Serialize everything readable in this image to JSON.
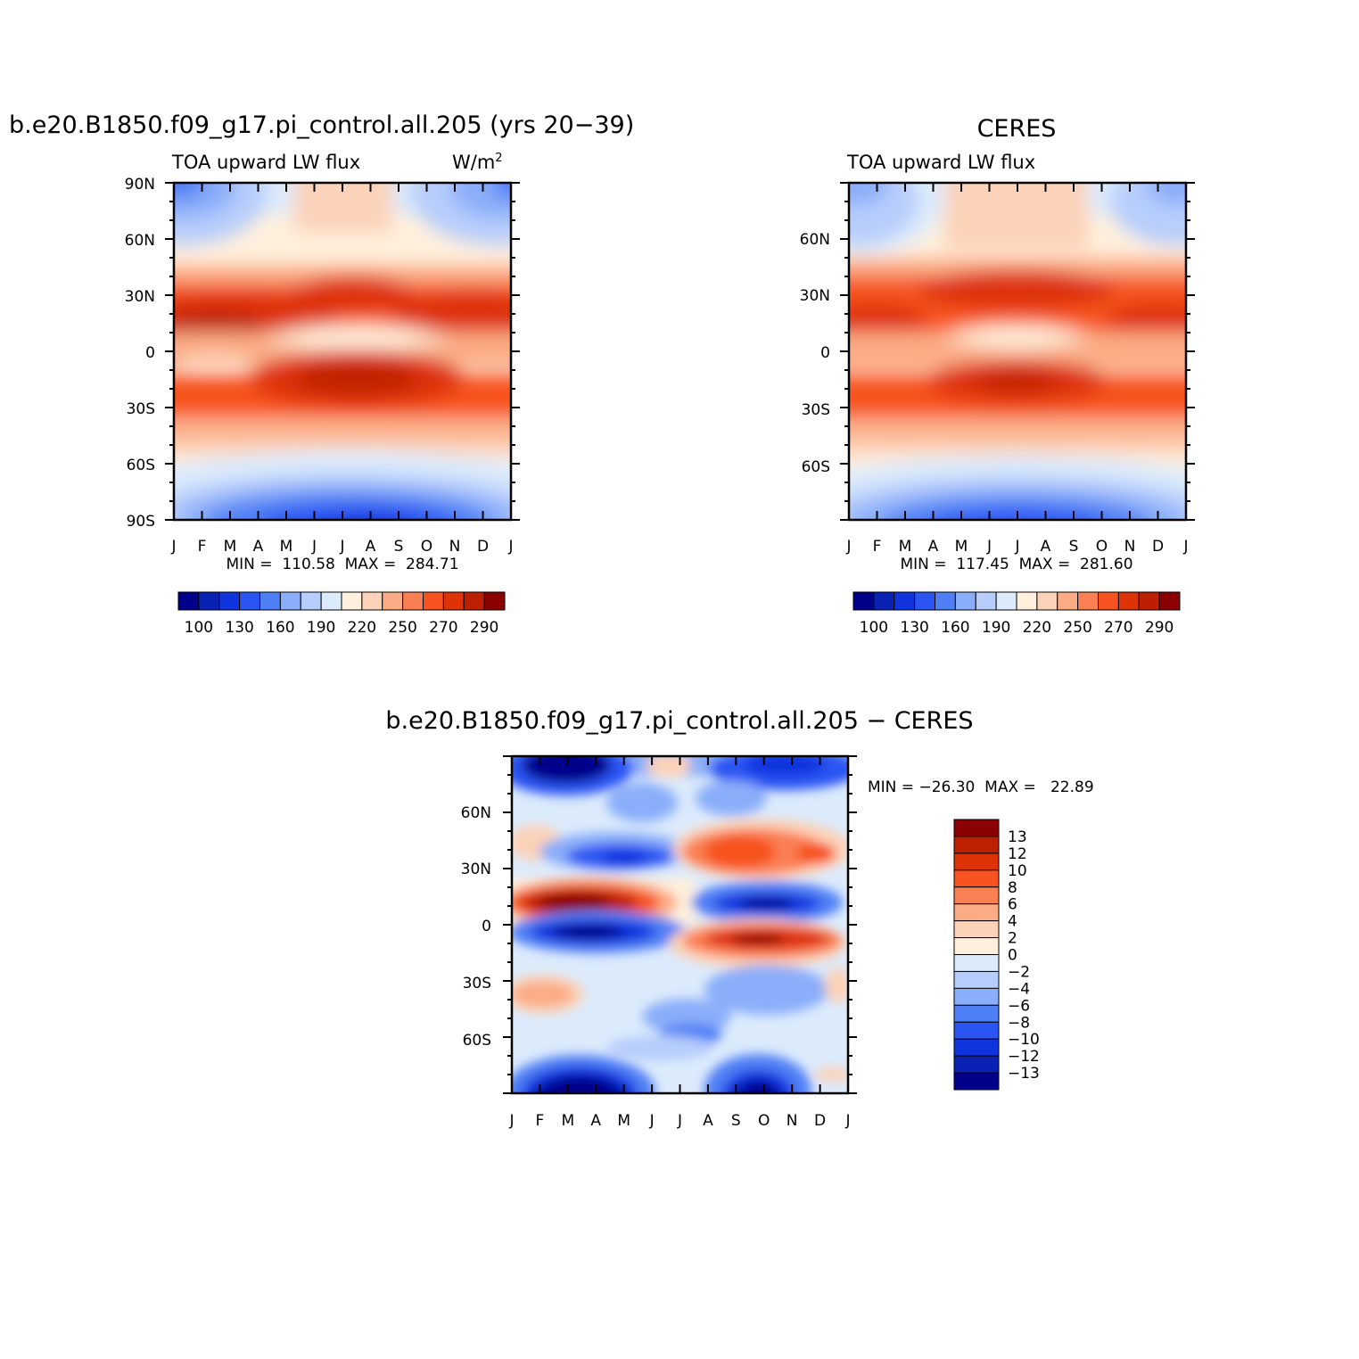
{
  "palette": {
    "colors": [
      "#00008b",
      "#0a22b4",
      "#0f33dd",
      "#2a55f2",
      "#4f7ff5",
      "#8aaef9",
      "#b7cdfb",
      "#dcebfc",
      "#fff0dd",
      "#fcd2b8",
      "#fbac85",
      "#fa7f52",
      "#f7521f",
      "#de3207",
      "#bd2000",
      "#8b0000"
    ],
    "diff_colors": [
      "#00008b",
      "#0a22b4",
      "#0f33dd",
      "#2a55f2",
      "#4f7ff5",
      "#8aaef9",
      "#b7cdfb",
      "#dcebfc",
      "#fff0dd",
      "#fcd2b8",
      "#fbac85",
      "#fa7f52",
      "#f7521f",
      "#de3207",
      "#bd2000",
      "#8b0000"
    ]
  },
  "chart_data": [
    {
      "type": "heatmap",
      "panel": "model",
      "title": "b.e20.B1850.f09_g17.pi_control.all.205 (yrs 20−39)",
      "subtitle_left": "TOA upward LW flux",
      "units": "W/m",
      "units_sup": "2",
      "stats": "MIN =  110.58  MAX =  284.71",
      "min": 110.58,
      "max": 284.71,
      "x_ticks": [
        "J",
        "F",
        "M",
        "A",
        "M",
        "J",
        "J",
        "A",
        "S",
        "O",
        "N",
        "D",
        "J"
      ],
      "y_ticks": [
        "90N",
        "60N",
        "30N",
        "0",
        "30S",
        "60S",
        "90S"
      ],
      "ylim": [
        -90,
        90
      ],
      "colorbar_levels": [
        100,
        110,
        120,
        130,
        140,
        150,
        160,
        170,
        180,
        190,
        200,
        210,
        220,
        230,
        240,
        250,
        260,
        270,
        280,
        290
      ],
      "colorbar_labels": [
        "100",
        "130",
        "160",
        "190",
        "220",
        "250",
        "270",
        "290"
      ]
    },
    {
      "type": "heatmap",
      "panel": "obs",
      "title": "CERES",
      "subtitle_left": "TOA upward LW flux",
      "stats": "MIN =  117.45  MAX =  281.60",
      "min": 117.45,
      "max": 281.6,
      "x_ticks": [
        "J",
        "F",
        "M",
        "A",
        "M",
        "J",
        "J",
        "A",
        "S",
        "O",
        "N",
        "D",
        "J"
      ],
      "y_ticks": [
        "60N",
        "30N",
        "0",
        "30S",
        "60S"
      ],
      "ylim": [
        -90,
        90
      ],
      "colorbar_labels": [
        "100",
        "130",
        "160",
        "190",
        "220",
        "250",
        "270",
        "290"
      ]
    },
    {
      "type": "heatmap",
      "panel": "difference",
      "title": "b.e20.B1850.f09_g17.pi_control.all.205 − CERES",
      "stats": "MIN = −26.30  MAX =   22.89",
      "min": -26.3,
      "max": 22.89,
      "x_ticks": [
        "J",
        "F",
        "M",
        "A",
        "M",
        "J",
        "J",
        "A",
        "S",
        "O",
        "N",
        "D",
        "J"
      ],
      "y_ticks": [
        "60N",
        "30N",
        "0",
        "30S",
        "60S"
      ],
      "ylim": [
        -90,
        90
      ],
      "colorbar_labels": [
        "13",
        "12",
        "10",
        "8",
        "6",
        "4",
        "2",
        "0",
        "−2",
        "−4",
        "−6",
        "−8",
        "−10",
        "−12",
        "−13"
      ]
    }
  ]
}
